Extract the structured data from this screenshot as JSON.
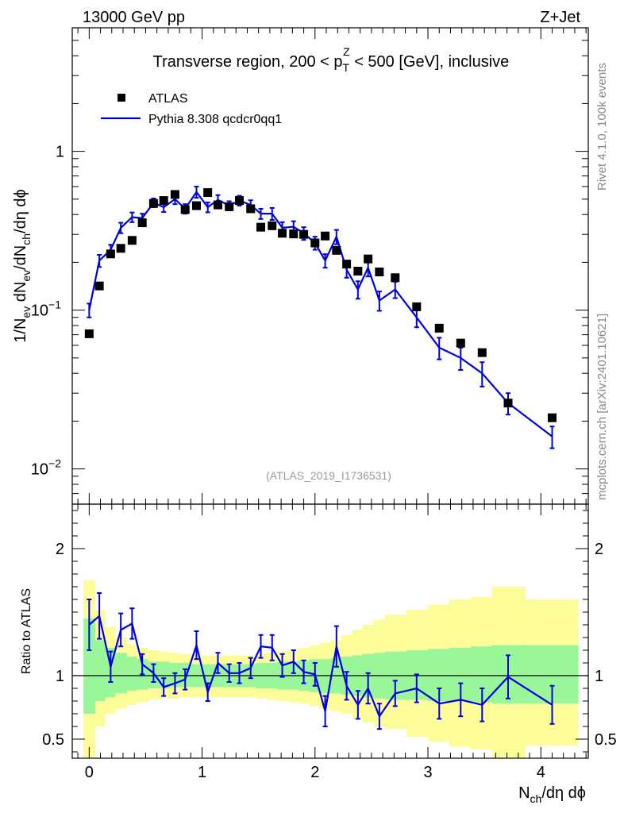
{
  "header": {
    "left": "13000 GeV pp",
    "right": "Z+Jet"
  },
  "side": {
    "rivet": "Rivet 4.1.0,  100k events",
    "mcplots": "mcplots.cern.ch [arXiv:2401.10621]"
  },
  "colors": {
    "mc": "#0000dd",
    "data": "#000000",
    "band_inner": "#99f699",
    "band_outer": "#fcfc99",
    "analysis_label": "#999999"
  },
  "chart_data": [
    {
      "id": "main",
      "type": "scatter",
      "title": "Transverse region, 200 < p_T^Z < 500 [GeV], inclusive",
      "title_pre": "Transverse region, 200 < p",
      "title_sub": "T",
      "title_sup": "Z",
      "title_post": " < 500 [GeV], inclusive",
      "analysis_label": "(ATLAS_2019_I1736531)",
      "ylabel": "1/N_ev dN_ev/dN_ch/dη dϕ",
      "yscale": "log",
      "ylim": [
        0.006,
        6
      ],
      "xlim": [
        -0.15,
        4.42
      ],
      "yticks": [
        {
          "value": 1,
          "label": "1"
        },
        {
          "value": 0.1,
          "base": "10",
          "exp": "−1"
        },
        {
          "value": 0.01,
          "base": "10",
          "exp": "−2"
        }
      ],
      "legend": {
        "data": "ATLAS",
        "mc": "Pythia 8.308 qcdcr0qq1"
      },
      "series": [
        {
          "name": "ATLAS",
          "marker": "square",
          "x": [
            0.0,
            0.09,
            0.19,
            0.28,
            0.38,
            0.47,
            0.57,
            0.66,
            0.76,
            0.85,
            0.95,
            1.05,
            1.14,
            1.24,
            1.33,
            1.43,
            1.52,
            1.62,
            1.71,
            1.81,
            1.9,
            2.0,
            2.09,
            2.19,
            2.28,
            2.38,
            2.47,
            2.57,
            2.71,
            2.9,
            3.1,
            3.29,
            3.48,
            3.71,
            4.1
          ],
          "y": [
            0.071,
            0.142,
            0.226,
            0.245,
            0.275,
            0.355,
            0.47,
            0.49,
            0.535,
            0.43,
            0.455,
            0.55,
            0.46,
            0.448,
            0.49,
            0.435,
            0.333,
            0.34,
            0.305,
            0.302,
            0.3,
            0.265,
            0.293,
            0.238,
            0.195,
            0.176,
            0.21,
            0.174,
            0.16,
            0.105,
            0.077,
            0.062,
            0.054,
            0.026,
            0.021
          ]
        },
        {
          "name": "Pythia 8.308 qcdcr0qq1",
          "marker": "line",
          "x": [
            0.0,
            0.09,
            0.19,
            0.28,
            0.38,
            0.47,
            0.57,
            0.66,
            0.76,
            0.85,
            0.95,
            1.05,
            1.14,
            1.24,
            1.33,
            1.43,
            1.52,
            1.62,
            1.71,
            1.81,
            1.9,
            2.0,
            2.09,
            2.19,
            2.28,
            2.38,
            2.47,
            2.57,
            2.71,
            2.9,
            3.1,
            3.29,
            3.48,
            3.71,
            4.1
          ],
          "y": [
            0.1,
            0.205,
            0.24,
            0.33,
            0.385,
            0.38,
            0.475,
            0.445,
            0.5,
            0.435,
            0.555,
            0.445,
            0.495,
            0.455,
            0.49,
            0.46,
            0.405,
            0.405,
            0.33,
            0.335,
            0.305,
            0.265,
            0.205,
            0.29,
            0.18,
            0.135,
            0.185,
            0.115,
            0.135,
            0.09,
            0.058,
            0.05,
            0.04,
            0.026,
            0.016
          ],
          "err": [
            0.01,
            0.018,
            0.018,
            0.025,
            0.027,
            0.025,
            0.03,
            0.03,
            0.035,
            0.03,
            0.045,
            0.032,
            0.035,
            0.03,
            0.035,
            0.032,
            0.03,
            0.035,
            0.028,
            0.028,
            0.028,
            0.025,
            0.02,
            0.03,
            0.02,
            0.017,
            0.022,
            0.016,
            0.016,
            0.012,
            0.009,
            0.008,
            0.007,
            0.004,
            0.0025
          ]
        }
      ]
    },
    {
      "id": "ratio",
      "type": "line",
      "ylabel": "Ratio to ATLAS",
      "xlabel": "N_ch/dη dϕ",
      "xlabel_pre": "N",
      "xlabel_sub": "ch",
      "xlabel_post": "/dη dϕ",
      "ylim": [
        0.35,
        2.35
      ],
      "xlim": [
        -0.15,
        4.42
      ],
      "xticks": [
        {
          "value": 0,
          "label": "0"
        },
        {
          "value": 1,
          "label": "1"
        },
        {
          "value": 2,
          "label": "2"
        },
        {
          "value": 3,
          "label": "3"
        },
        {
          "value": 4,
          "label": "4"
        }
      ],
      "yticks": [
        {
          "value": 2,
          "label": "2"
        },
        {
          "value": 1,
          "label": "1"
        },
        {
          "value": 0.5,
          "label": "0.5"
        }
      ],
      "bands": {
        "edges": [
          -0.05,
          0.05,
          0.14,
          0.23,
          0.33,
          0.42,
          0.52,
          0.61,
          0.71,
          0.8,
          0.9,
          1.0,
          1.09,
          1.19,
          1.28,
          1.38,
          1.47,
          1.57,
          1.66,
          1.76,
          1.85,
          1.95,
          2.04,
          2.14,
          2.23,
          2.33,
          2.42,
          2.52,
          2.62,
          2.81,
          3.0,
          3.19,
          3.38,
          3.57,
          3.86,
          4.33
        ],
        "inner_low": [
          0.7,
          0.8,
          0.83,
          0.86,
          0.88,
          0.89,
          0.9,
          0.9,
          0.91,
          0.91,
          0.91,
          0.91,
          0.91,
          0.91,
          0.91,
          0.91,
          0.9,
          0.9,
          0.89,
          0.89,
          0.88,
          0.87,
          0.86,
          0.86,
          0.85,
          0.84,
          0.83,
          0.82,
          0.81,
          0.81,
          0.8,
          0.8,
          0.79,
          0.78,
          0.78
        ],
        "inner_high": [
          1.45,
          1.28,
          1.22,
          1.18,
          1.15,
          1.13,
          1.11,
          1.11,
          1.1,
          1.1,
          1.09,
          1.09,
          1.09,
          1.09,
          1.09,
          1.09,
          1.1,
          1.1,
          1.11,
          1.11,
          1.12,
          1.13,
          1.13,
          1.14,
          1.15,
          1.16,
          1.17,
          1.18,
          1.19,
          1.2,
          1.21,
          1.22,
          1.23,
          1.24,
          1.24
        ],
        "outer_low": [
          0.3,
          0.6,
          0.7,
          0.74,
          0.77,
          0.79,
          0.81,
          0.82,
          0.82,
          0.83,
          0.83,
          0.83,
          0.83,
          0.83,
          0.83,
          0.83,
          0.82,
          0.81,
          0.8,
          0.79,
          0.78,
          0.76,
          0.74,
          0.72,
          0.7,
          0.66,
          0.63,
          0.6,
          0.58,
          0.52,
          0.48,
          0.44,
          0.42,
          0.3,
          0.45
        ],
        "outer_high": [
          1.75,
          1.52,
          1.38,
          1.3,
          1.25,
          1.22,
          1.2,
          1.19,
          1.18,
          1.17,
          1.16,
          1.16,
          1.16,
          1.16,
          1.16,
          1.16,
          1.17,
          1.18,
          1.19,
          1.2,
          1.22,
          1.24,
          1.26,
          1.28,
          1.32,
          1.36,
          1.4,
          1.44,
          1.48,
          1.52,
          1.56,
          1.6,
          1.62,
          1.7,
          1.6
        ]
      },
      "series": [
        {
          "name": "Pythia 8.308 qcdcr0qq1 / ATLAS",
          "x": [
            0.0,
            0.09,
            0.19,
            0.28,
            0.38,
            0.47,
            0.57,
            0.66,
            0.76,
            0.85,
            0.95,
            1.05,
            1.14,
            1.24,
            1.33,
            1.43,
            1.52,
            1.62,
            1.71,
            1.81,
            1.9,
            2.0,
            2.09,
            2.19,
            2.28,
            2.38,
            2.47,
            2.57,
            2.71,
            2.9,
            3.1,
            3.29,
            3.48,
            3.71,
            4.1
          ],
          "y": [
            1.4,
            1.47,
            1.07,
            1.36,
            1.41,
            1.09,
            1.02,
            0.91,
            0.94,
            0.97,
            1.24,
            0.87,
            1.1,
            1.02,
            1.02,
            1.06,
            1.23,
            1.22,
            1.08,
            1.11,
            1.03,
            1.01,
            0.72,
            1.23,
            0.92,
            0.77,
            0.9,
            0.68,
            0.86,
            0.9,
            0.78,
            0.81,
            0.77,
            0.99,
            0.77
          ],
          "err": [
            0.2,
            0.18,
            0.12,
            0.13,
            0.12,
            0.08,
            0.07,
            0.07,
            0.08,
            0.08,
            0.11,
            0.07,
            0.08,
            0.07,
            0.08,
            0.08,
            0.09,
            0.1,
            0.09,
            0.09,
            0.09,
            0.09,
            0.12,
            0.16,
            0.11,
            0.11,
            0.12,
            0.1,
            0.1,
            0.11,
            0.12,
            0.13,
            0.13,
            0.17,
            0.15
          ]
        }
      ]
    }
  ]
}
